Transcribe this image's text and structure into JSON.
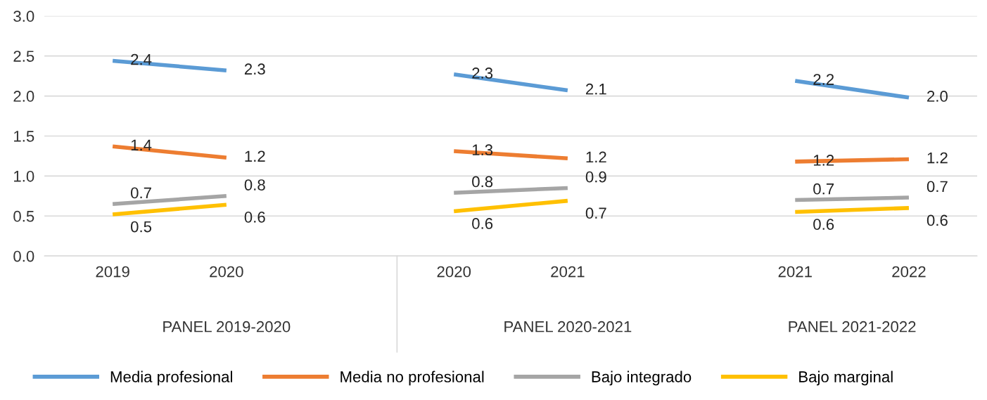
{
  "chart_data": {
    "type": "line",
    "categories": [
      "2019",
      "2020",
      null,
      "2020",
      "2021",
      null,
      "2021",
      "2022"
    ],
    "ylim": [
      0,
      3
    ],
    "yticks": [
      {
        "value": 0,
        "label": "0.0"
      },
      {
        "value": 0.5,
        "label": "0.5"
      },
      {
        "value": 1,
        "label": "1.0"
      },
      {
        "value": 1.5,
        "label": "1.5"
      },
      {
        "value": 2,
        "label": "2.0"
      },
      {
        "value": 2.5,
        "label": "2.5"
      },
      {
        "value": 3,
        "label": "3.0"
      }
    ],
    "grid": "y",
    "legend": "bottom",
    "marker": "none",
    "line_style": "solid",
    "annotations": [
      "PANEL 2019-2020",
      "PANEL 2020-2021",
      "PANEL 2021-2022"
    ],
    "series": [
      {
        "name": "Media profesional",
        "color": "#5b9bd5",
        "values": [
          2.44,
          2.32,
          null,
          2.27,
          2.07,
          null,
          2.19,
          1.98
        ],
        "value_labels": [
          "2.4",
          "2.3",
          null,
          "2.3",
          "2.1",
          null,
          "2.2",
          "2.0"
        ]
      },
      {
        "name": "Media no profesional",
        "color": "#ed7d31",
        "values": [
          1.37,
          1.23,
          null,
          1.31,
          1.22,
          null,
          1.18,
          1.21
        ],
        "value_labels": [
          "1.4",
          "1.2",
          null,
          "1.3",
          "1.2",
          null,
          "1.2",
          "1.2"
        ]
      },
      {
        "name": "Bajo integrado",
        "color": "#a5a5a5",
        "values": [
          0.65,
          0.75,
          null,
          0.79,
          0.85,
          null,
          0.7,
          0.73
        ],
        "value_labels": [
          "0.7",
          "0.8",
          null,
          "0.8",
          "0.9",
          null,
          "0.7",
          "0.7"
        ]
      },
      {
        "name": "Bajo marginal",
        "color": "#ffc000",
        "values": [
          0.52,
          0.64,
          null,
          0.56,
          0.69,
          null,
          0.55,
          0.6
        ],
        "value_labels": [
          "0.5",
          "0.6",
          null,
          "0.6",
          "0.7",
          null,
          "0.6",
          "0.6"
        ]
      }
    ]
  }
}
